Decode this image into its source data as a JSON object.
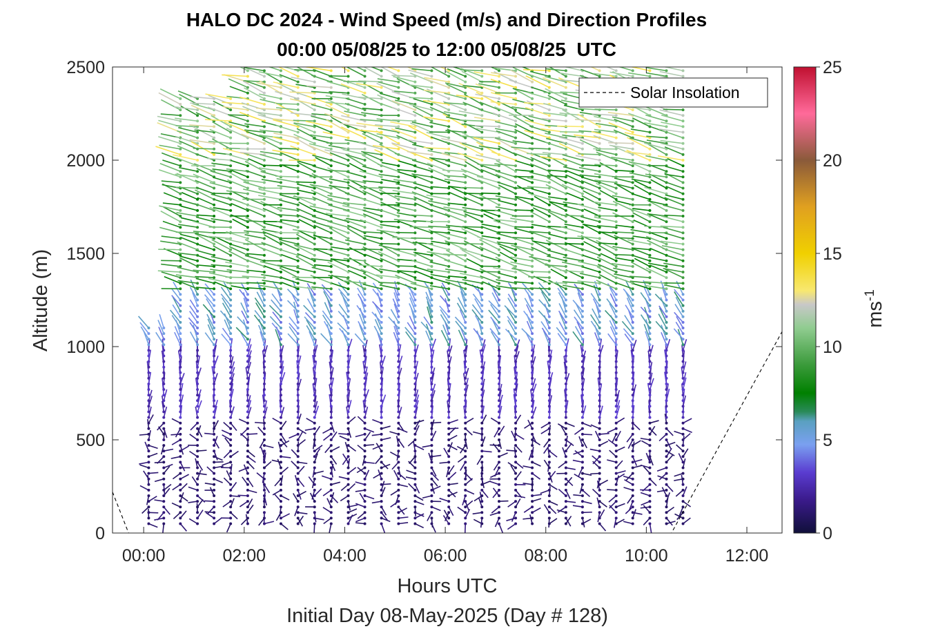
{
  "chart_data": {
    "type": "quiver",
    "title": "HALO DC 2024 - Wind Speed (m/s) and Direction Profiles",
    "subtitle": "00:00 05/08/25 to 12:00 05/08/25  UTC",
    "xlabel": "Hours UTC",
    "xlabel2": "Initial Day 08-May-2025 (Day # 128)",
    "ylabel": "Altitude (m)",
    "xlim": [
      -0.62,
      12.7
    ],
    "ylim": [
      0,
      2500
    ],
    "x_ticks": [
      0,
      2,
      4,
      6,
      8,
      10,
      12
    ],
    "x_tick_labels": [
      "00:00",
      "02:00",
      "04:00",
      "06:00",
      "08:00",
      "10:00",
      "12:00"
    ],
    "y_ticks": [
      0,
      500,
      1000,
      1500,
      2000,
      2500
    ],
    "y_tick_labels": [
      "0",
      "500",
      "1000",
      "1500",
      "2000",
      "2500"
    ],
    "colorbar": {
      "label": "ms",
      "label_exponent": "-1",
      "range": [
        0,
        25
      ],
      "ticks": [
        0,
        5,
        10,
        15,
        20,
        25
      ],
      "tick_labels": [
        "0",
        "5",
        "10",
        "15",
        "20",
        "25"
      ]
    },
    "legend": {
      "entries": [
        "Solar Insolation"
      ],
      "position": "top-right",
      "line_style": "dashed"
    },
    "profile_times_hours": [
      0.1,
      0.4,
      0.73,
      1.07,
      1.4,
      1.73,
      2.07,
      2.4,
      2.73,
      3.07,
      3.4,
      3.73,
      4.07,
      4.4,
      4.73,
      5.07,
      5.4,
      5.73,
      6.07,
      6.4,
      6.73,
      7.07,
      7.4,
      7.73,
      8.07,
      8.4,
      8.73,
      9.07,
      9.4,
      9.73,
      10.07,
      10.4,
      10.73
    ],
    "profile_top_altitude_m": [
      1100,
      1100,
      2350,
      2350,
      2350,
      2350,
      2500,
      2500,
      2500,
      2500,
      2500,
      2500,
      2500,
      2500,
      2500,
      2500,
      2500,
      2500,
      2500,
      2500,
      2500,
      2500,
      2500,
      2500,
      2500,
      2500,
      2500,
      2500,
      2500,
      2500,
      2500,
      2500,
      2500
    ],
    "layers": [
      {
        "altitude_range_m": [
          0,
          600
        ],
        "speed_ms": 1.0,
        "direction": "variable"
      },
      {
        "altitude_range_m": [
          600,
          1000
        ],
        "speed_ms": 2.5,
        "direction": "northerly"
      },
      {
        "altitude_range_m": [
          1000,
          1300
        ],
        "speed_ms": 5.0,
        "direction": "northwesterly"
      },
      {
        "altitude_range_m": [
          1300,
          2000
        ],
        "speed_ms": 9.0,
        "direction": "westerly"
      },
      {
        "altitude_range_m": [
          2000,
          2500
        ],
        "speed_ms": 11.0,
        "direction": "westerly"
      }
    ],
    "solar_insolation": {
      "x": [
        -0.62,
        -0.3,
        10.5,
        12.7
      ],
      "y": [
        220,
        0,
        0,
        1080
      ]
    }
  }
}
